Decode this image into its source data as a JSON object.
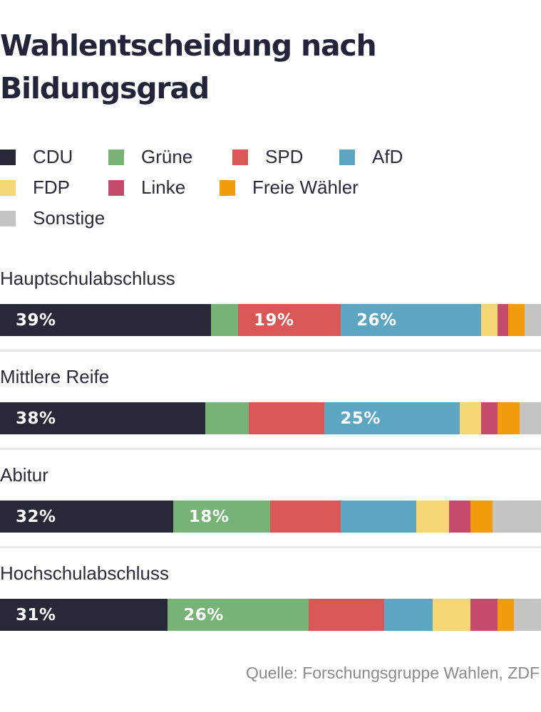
{
  "chart_data": {
    "type": "bar",
    "orientation": "horizontal-stacked-100",
    "title": "Wahlentscheidung nach Bildungsgrad",
    "unit": "%",
    "legend": [
      {
        "name": "CDU",
        "color": "#272838"
      },
      {
        "name": "Grüne",
        "color": "#77b277"
      },
      {
        "name": "SPD",
        "color": "#d95757"
      },
      {
        "name": "AfD",
        "color": "#5ca6c2"
      },
      {
        "name": "FDP",
        "color": "#f7d774"
      },
      {
        "name": "Linke",
        "color": "#c44b6b"
      },
      {
        "name": "Freie Wähler",
        "color": "#f29c0d"
      },
      {
        "name": "Sonstige",
        "color": "#c4c4c2"
      }
    ],
    "categories": [
      "Hauptschulabschluss",
      "Mittlere Reife",
      "Abitur",
      "Hochschulabschluss"
    ],
    "series": [
      {
        "name": "CDU",
        "values": [
          39,
          38,
          32,
          31
        ],
        "labels": [
          "39%",
          "38%",
          "32%",
          "31%"
        ]
      },
      {
        "name": "Grüne",
        "values": [
          5,
          8,
          18,
          26
        ],
        "labels": [
          "",
          "",
          "18%",
          "26%"
        ]
      },
      {
        "name": "SPD",
        "values": [
          19,
          14,
          13,
          14
        ],
        "labels": [
          "19%",
          "",
          "",
          ""
        ]
      },
      {
        "name": "AfD",
        "values": [
          26,
          25,
          14,
          9
        ],
        "labels": [
          "26%",
          "25%",
          "",
          ""
        ]
      },
      {
        "name": "FDP",
        "values": [
          3,
          4,
          6,
          7
        ],
        "labels": [
          "",
          "",
          "",
          ""
        ]
      },
      {
        "name": "Linke",
        "values": [
          2,
          3,
          4,
          5
        ],
        "labels": [
          "",
          "",
          "",
          ""
        ]
      },
      {
        "name": "Freie Wähler",
        "values": [
          3,
          4,
          4,
          3
        ],
        "labels": [
          "",
          "",
          "",
          ""
        ]
      },
      {
        "name": "Sonstige",
        "values": [
          3,
          4,
          9,
          5
        ],
        "labels": [
          "",
          "",
          "",
          ""
        ]
      }
    ],
    "source": "Quelle: Forschungsgruppe Wahlen, ZDF"
  }
}
